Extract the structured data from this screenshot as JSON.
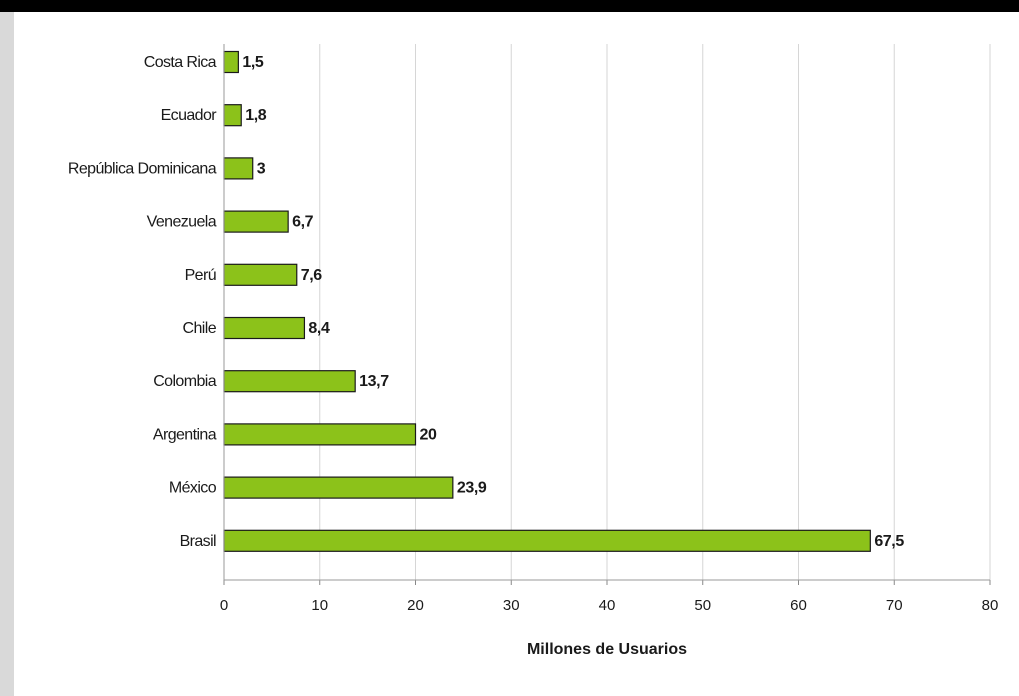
{
  "colors": {
    "frame": "#000000",
    "left_bar": "#d9d9d9",
    "background": "#ffffff",
    "bar_fill": "#8cc21a",
    "bar_stroke": "#1a1a1a",
    "grid": "#d6d6d6"
  },
  "chart_data": {
    "type": "bar",
    "orientation": "horizontal",
    "title": "",
    "xlabel": "Millones de Usuarios",
    "ylabel": "",
    "xlim": [
      0,
      80
    ],
    "x_ticks": [
      0,
      10,
      20,
      30,
      40,
      50,
      60,
      70,
      80
    ],
    "grid": true,
    "legend": "none",
    "categories": [
      "Costa Rica",
      "Ecuador",
      "República Dominicana",
      "Venezuela",
      "Perú",
      "Chile",
      "Colombia",
      "Argentina",
      "México",
      "Brasil"
    ],
    "values": [
      1.5,
      1.8,
      3,
      6.7,
      7.6,
      8.4,
      13.7,
      20,
      23.9,
      67.5
    ],
    "data_labels": [
      "1,5",
      "1,8",
      "3",
      "6,7",
      "7,6",
      "8,4",
      "13,7",
      "20",
      "23,9",
      "67,5"
    ]
  }
}
